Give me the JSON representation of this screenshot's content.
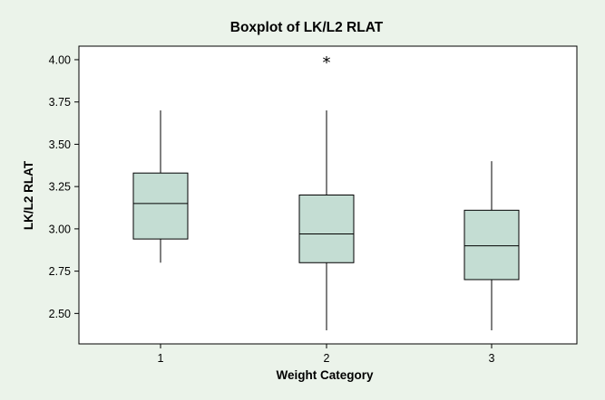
{
  "chart_data": {
    "type": "boxplot",
    "title": "Boxplot of LK/L2 RLAT",
    "xlabel": "Weight Category",
    "ylabel": "LK/L2 RLAT",
    "ylim": [
      2.32,
      4.08
    ],
    "yticks": [
      "2.50",
      "2.75",
      "3.00",
      "3.25",
      "3.50",
      "3.75",
      "4.00"
    ],
    "categories": [
      "1",
      "2",
      "3"
    ],
    "boxes": [
      {
        "category": "1",
        "whisker_low": 2.8,
        "q1": 2.94,
        "median": 3.15,
        "q3": 3.33,
        "whisker_high": 3.7,
        "outliers": []
      },
      {
        "category": "2",
        "whisker_low": 2.4,
        "q1": 2.8,
        "median": 2.97,
        "q3": 3.2,
        "whisker_high": 3.7,
        "outliers": [
          4.0
        ]
      },
      {
        "category": "3",
        "whisker_low": 2.4,
        "q1": 2.7,
        "median": 2.9,
        "q3": 3.11,
        "whisker_high": 3.4,
        "outliers": []
      }
    ],
    "outlier_symbol": "*",
    "grid": false,
    "legend": "none",
    "colors": {
      "background": "#ebf3ea",
      "plot_area": "#ffffff",
      "box_fill": "#c4ddd3",
      "line": "#000000"
    }
  }
}
